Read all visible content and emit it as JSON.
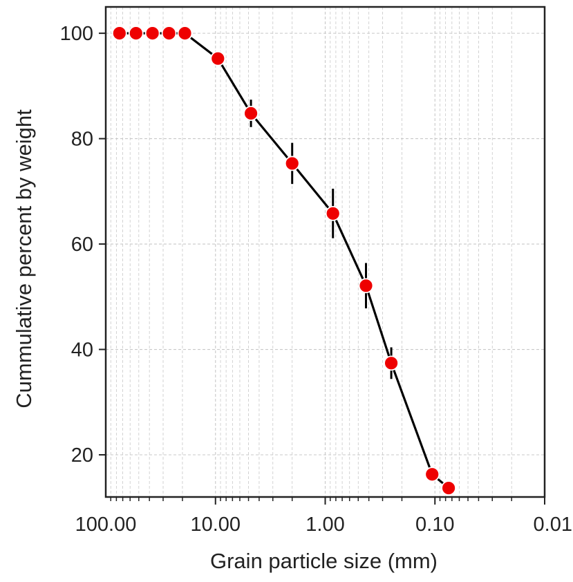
{
  "chart_data": {
    "type": "scatter",
    "title": "",
    "xlabel": "Grain particle size (mm)",
    "ylabel": "Cummulative percent by weight",
    "x_scale": "log",
    "x_reversed": true,
    "xlim": [
      100,
      0.01
    ],
    "ylim": [
      12,
      105
    ],
    "grid": true,
    "legend": "none",
    "x_ticks": [
      {
        "value": 100,
        "label": "100.00"
      },
      {
        "value": 10,
        "label": "10.00"
      },
      {
        "value": 1,
        "label": "1.00"
      },
      {
        "value": 0.1,
        "label": "0.10"
      },
      {
        "value": 0.01,
        "label": "0.01"
      }
    ],
    "y_ticks": [
      {
        "value": 20,
        "label": "20"
      },
      {
        "value": 40,
        "label": "40"
      },
      {
        "value": 60,
        "label": "60"
      },
      {
        "value": 80,
        "label": "80"
      },
      {
        "value": 100,
        "label": "100"
      }
    ],
    "series": [
      {
        "x": [
          75,
          53,
          37.5,
          26.5,
          19,
          9.5,
          4.75,
          2.0,
          0.85,
          0.425,
          0.25,
          0.106,
          0.075
        ],
        "y": [
          100,
          100,
          100,
          100,
          100,
          95.2,
          84.8,
          75.3,
          65.8,
          52.1,
          37.4,
          16.3,
          13.7
        ],
        "error": [
          0,
          0,
          0,
          0,
          0,
          0,
          2.6,
          3.9,
          4.7,
          4.3,
          3.0,
          0,
          0
        ]
      }
    ],
    "colors": {
      "marker_fill": "#ee0000",
      "marker_edge": "#ffffff",
      "line": "#000000",
      "grid": "#c8c8c8",
      "axis": "#222222"
    }
  }
}
